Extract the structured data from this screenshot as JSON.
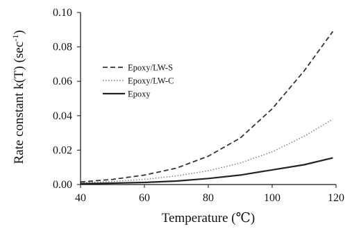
{
  "chart_data": {
    "type": "line",
    "title": "",
    "xlabel": "Temperature (℃)",
    "ylabel": "Rate constant k(T) (sec",
    "ylabel_superscript": "-1",
    "ylabel_close": ")",
    "xlim": [
      40,
      120
    ],
    "ylim": [
      0,
      0.1
    ],
    "x_ticks": [
      "40",
      "60",
      "80",
      "100",
      "120"
    ],
    "y_ticks": [
      "0.00",
      "0.02",
      "0.04",
      "0.06",
      "0.08",
      "0.10"
    ],
    "x_tick_values": [
      40,
      60,
      80,
      100,
      120
    ],
    "y_tick_values": [
      0,
      0.02,
      0.04,
      0.06,
      0.08,
      0.1
    ],
    "grid": false,
    "legend_position": "upper-left",
    "x": [
      40,
      50,
      60,
      70,
      80,
      90,
      100,
      110,
      119
    ],
    "series": [
      {
        "name": "Epoxy/LW-S",
        "style": "dashed",
        "color": "#333333",
        "values": [
          0.0015,
          0.003,
          0.0055,
          0.0095,
          0.0165,
          0.027,
          0.044,
          0.066,
          0.089
        ]
      },
      {
        "name": "Epoxy/LW-C",
        "style": "dotted",
        "color": "#777777",
        "values": [
          0.001,
          0.0018,
          0.003,
          0.005,
          0.008,
          0.0125,
          0.019,
          0.028,
          0.038
        ]
      },
      {
        "name": "Epoxy",
        "style": "solid",
        "color": "#222222",
        "values": [
          0.0005,
          0.0008,
          0.0012,
          0.002,
          0.0035,
          0.0055,
          0.0085,
          0.0115,
          0.0155
        ]
      }
    ]
  }
}
